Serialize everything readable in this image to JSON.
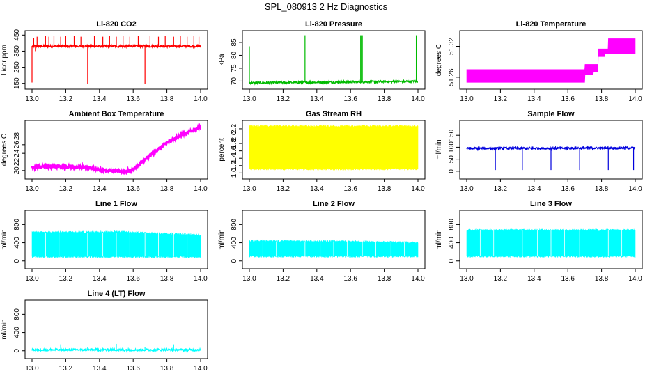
{
  "figure": {
    "title": "SPL_080913  2 Hz Diagnostics"
  },
  "chart_data": [
    {
      "id": "co2",
      "type": "line",
      "title": "Li-820 CO2",
      "xlabel": "",
      "ylabel": "Licor ppm",
      "xlim": [
        13.0,
        14.0
      ],
      "ylim": [
        140,
        460
      ],
      "xticks": [
        "13.0",
        "13.2",
        "13.4",
        "13.6",
        "13.8",
        "14.0"
      ],
      "yticks": [
        "150",
        "250",
        "350",
        "450"
      ],
      "color": "#ff0000",
      "series": [
        {
          "base": 381,
          "x": [
            13.0,
            13.01,
            13.02,
            13.03,
            13.05,
            13.08,
            13.1,
            13.13,
            13.17,
            13.2,
            13.25,
            13.29,
            13.33,
            13.37,
            13.42,
            13.46,
            13.5,
            13.54,
            13.58,
            13.63,
            13.67,
            13.7,
            13.75,
            13.79,
            13.84,
            13.88,
            13.92,
            13.96,
            13.99
          ],
          "y": [
            155,
            430,
            350,
            440,
            370,
            445,
            440,
            445,
            440,
            445,
            445,
            440,
            145,
            445,
            440,
            445,
            440,
            445,
            440,
            445,
            145,
            445,
            440,
            445,
            440,
            445,
            440,
            445,
            440
          ]
        }
      ]
    },
    {
      "id": "pressure",
      "type": "line",
      "title": "Li-820 Pressure",
      "xlabel": "",
      "ylabel": "kPa",
      "xlim": [
        13.0,
        14.0
      ],
      "ylim": [
        68.5,
        88.5
      ],
      "xticks": [
        "13.0",
        "13.2",
        "13.4",
        "13.6",
        "13.8",
        "14.0"
      ],
      "yticks": [
        "70",
        "75",
        "80",
        "85"
      ],
      "color": "#00bb00",
      "series": [
        {
          "base_start": 69.3,
          "base_end": 69.9,
          "x": [
            13.0,
            13.33,
            13.66,
            13.665,
            13.67,
            13.99
          ],
          "y": [
            83.5,
            87.8,
            87.8,
            87.8,
            87.8,
            87.8
          ]
        }
      ]
    },
    {
      "id": "licor-temp",
      "type": "area",
      "title": "Li-820 Temperature",
      "xlabel": "",
      "ylabel": "degrees C",
      "xlim": [
        13.0,
        14.0
      ],
      "ylim": [
        51.245,
        51.345
      ],
      "xticks": [
        "13.0",
        "13.2",
        "13.4",
        "13.6",
        "13.8",
        "14.0"
      ],
      "yticks": [
        "51.26",
        "51.32"
      ],
      "color": "#ff00ff",
      "series": [
        {
          "x": [
            13.0,
            13.7,
            13.7,
            13.75,
            13.75,
            13.78,
            13.78,
            13.82,
            13.82,
            13.84,
            13.84,
            14.0
          ],
          "y_low": [
            51.25,
            51.25,
            51.265,
            51.265,
            51.27,
            51.27,
            51.3,
            51.3,
            51.305,
            51.305,
            51.305,
            51.305
          ],
          "y_high": [
            51.275,
            51.275,
            51.285,
            51.285,
            51.285,
            51.285,
            51.315,
            51.315,
            51.315,
            51.315,
            51.335,
            51.335
          ]
        }
      ]
    },
    {
      "id": "box-temp",
      "type": "line",
      "title": "Ambient Box Temperature",
      "xlabel": "",
      "ylabel": "degrees C",
      "xlim": [
        13.0,
        14.0
      ],
      "ylim": [
        19.0,
        31.0
      ],
      "xticks": [
        "13.0",
        "13.2",
        "13.4",
        "13.6",
        "13.8",
        "14.0"
      ],
      "yticks": [
        "20",
        "22",
        "24",
        "26",
        "28"
      ],
      "color": "#ff00ff",
      "series": [
        {
          "x": [
            13.0,
            13.05,
            13.1,
            13.2,
            13.3,
            13.35,
            13.4,
            13.45,
            13.5,
            13.55,
            13.6,
            13.65,
            13.7,
            13.75,
            13.8,
            13.85,
            13.9,
            13.95,
            14.0
          ],
          "y": [
            20.8,
            20.8,
            20.9,
            20.9,
            20.8,
            20.5,
            20.2,
            20.0,
            19.9,
            19.7,
            20.3,
            21.8,
            23.5,
            25.0,
            26.5,
            27.5,
            28.5,
            29.3,
            30.2
          ]
        }
      ]
    },
    {
      "id": "rh",
      "type": "area",
      "title": "Gas Stream RH",
      "xlabel": "",
      "ylabel": "percent",
      "xlim": [
        13.0,
        14.0
      ],
      "ylim": [
        0.95,
        2.35
      ],
      "xticks": [
        "13.0",
        "13.2",
        "13.4",
        "13.6",
        "13.8",
        "14.0"
      ],
      "yticks": [
        "1.0",
        "1.2",
        "1.4",
        "1.6",
        "1.8",
        "2.0",
        "2.2"
      ],
      "color": "#ffff00",
      "series": [
        {
          "x": [
            13.0,
            14.0
          ],
          "y_low": [
            1.08,
            1.08
          ],
          "y_high": [
            2.3,
            2.3
          ]
        }
      ]
    },
    {
      "id": "sample-flow",
      "type": "line",
      "title": "Sample Flow",
      "xlabel": "",
      "ylabel": "ml/min",
      "xlim": [
        13.0,
        14.0
      ],
      "ylim": [
        -15,
        200
      ],
      "xticks": [
        "13.0",
        "13.2",
        "13.4",
        "13.6",
        "13.8",
        "14.0"
      ],
      "yticks": [
        "0",
        "50",
        "100",
        "150"
      ],
      "color": "#0000dd",
      "series": [
        {
          "base_start": 95,
          "base_end": 97,
          "x": [
            13.17,
            13.33,
            13.5,
            13.67,
            13.84,
            13.99
          ],
          "y": [
            5,
            5,
            5,
            5,
            5,
            5
          ]
        }
      ]
    },
    {
      "id": "line1",
      "type": "area",
      "title": "Line 1 Flow",
      "xlabel": "",
      "ylabel": "ml/min",
      "xlim": [
        13.0,
        14.0
      ],
      "ylim": [
        -80,
        1050
      ],
      "xticks": [
        "13.0",
        "13.2",
        "13.4",
        "13.6",
        "13.8",
        "14.0"
      ],
      "yticks": [
        "0",
        "400",
        "800"
      ],
      "color": "#00ffff",
      "series": [
        {
          "x": [
            13.0,
            13.3,
            13.5,
            13.7,
            13.9,
            14.0
          ],
          "y_low": [
            70,
            70,
            70,
            70,
            70,
            70
          ],
          "y_high": [
            650,
            655,
            665,
            630,
            610,
            590
          ]
        }
      ]
    },
    {
      "id": "line2",
      "type": "area",
      "title": "Line 2 Flow",
      "xlabel": "",
      "ylabel": "ml/min",
      "xlim": [
        13.0,
        14.0
      ],
      "ylim": [
        -80,
        1050
      ],
      "xticks": [
        "13.0",
        "13.2",
        "13.4",
        "13.6",
        "13.8",
        "14.0"
      ],
      "yticks": [
        "0",
        "400",
        "800"
      ],
      "color": "#00ffff",
      "series": [
        {
          "x": [
            13.0,
            13.5,
            13.8,
            14.0
          ],
          "y_low": [
            80,
            80,
            80,
            80
          ],
          "y_high": [
            460,
            455,
            440,
            420
          ]
        }
      ]
    },
    {
      "id": "line3",
      "type": "area",
      "title": "Line 3 Flow",
      "xlabel": "",
      "ylabel": "ml/min",
      "xlim": [
        13.0,
        14.0
      ],
      "ylim": [
        -80,
        1050
      ],
      "xticks": [
        "13.0",
        "13.2",
        "13.4",
        "13.6",
        "13.8",
        "14.0"
      ],
      "yticks": [
        "0",
        "400",
        "800"
      ],
      "color": "#00ffff",
      "series": [
        {
          "x": [
            13.0,
            14.0
          ],
          "y_low": [
            80,
            80
          ],
          "y_high": [
            700,
            700
          ]
        }
      ]
    },
    {
      "id": "line4",
      "type": "line",
      "title": "Line 4 (LT) Flow",
      "xlabel": "",
      "ylabel": "ml/min",
      "xlim": [
        13.0,
        14.0
      ],
      "ylim": [
        -80,
        1050
      ],
      "xticks": [
        "13.0",
        "13.2",
        "13.4",
        "13.6",
        "13.8",
        "14.0"
      ],
      "yticks": [
        "0",
        "400",
        "800"
      ],
      "color": "#00ffff",
      "series": [
        {
          "base": 20,
          "x": [
            13.17,
            13.33,
            13.5,
            13.67,
            13.84,
            13.99
          ],
          "y": [
            140,
            80,
            150,
            80,
            140,
            90
          ]
        }
      ]
    }
  ]
}
